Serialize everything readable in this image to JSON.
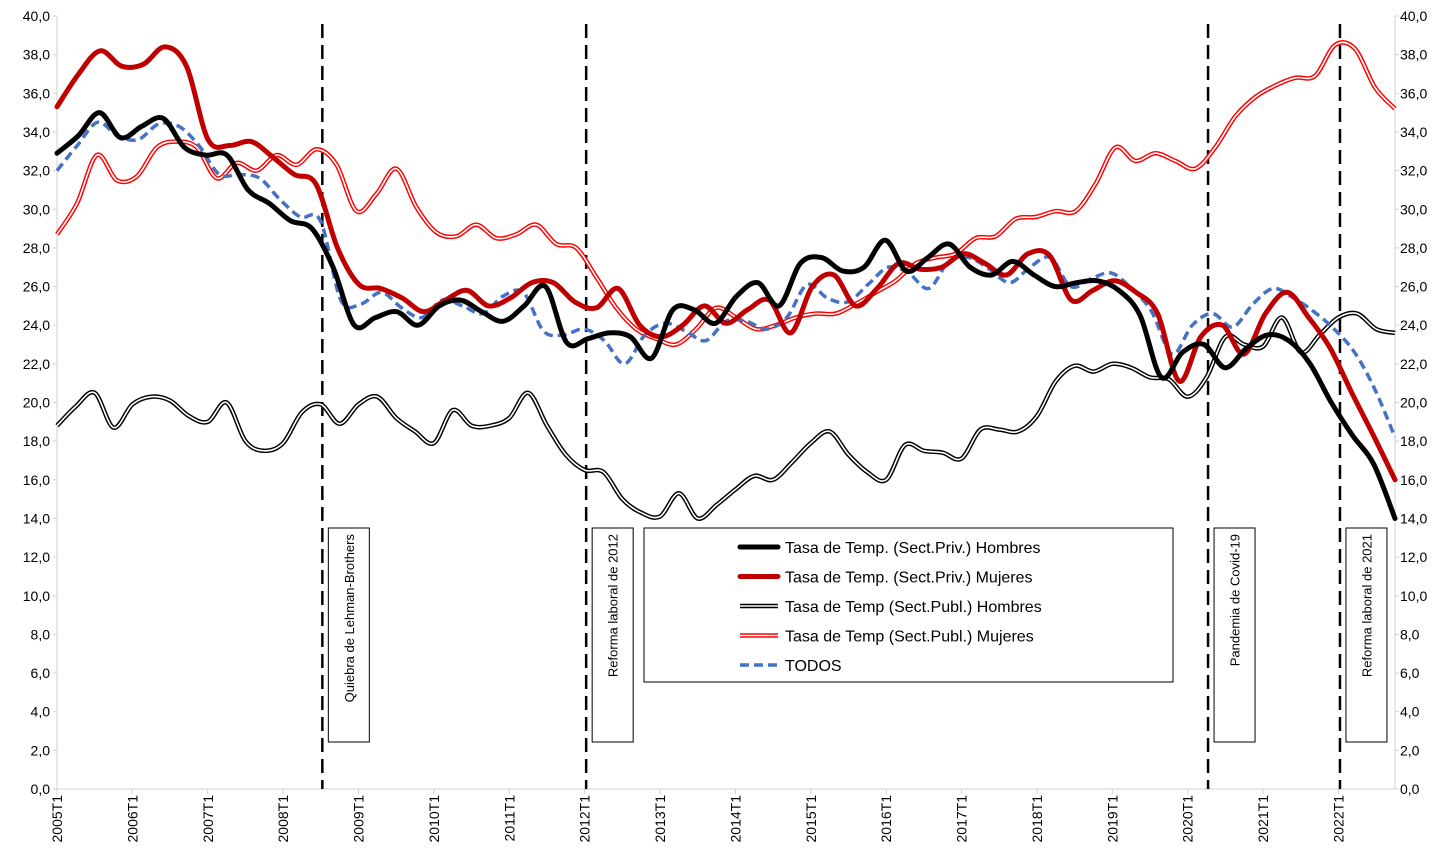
{
  "chart_data": {
    "type": "line",
    "title": "",
    "xlabel": "",
    "ylabel": "",
    "ylim": [
      0,
      40
    ],
    "y_ticks": [
      "0,0",
      "2,0",
      "4,0",
      "6,0",
      "8,0",
      "10,0",
      "12,0",
      "14,0",
      "16,0",
      "18,0",
      "20,0",
      "22,0",
      "24,0",
      "26,0",
      "28,0",
      "30,0",
      "32,0",
      "34,0",
      "36,0",
      "38,0",
      "40,0"
    ],
    "x_tick_labels": [
      "2005T1",
      "2006T1",
      "2007T1",
      "2008T1",
      "2009T1",
      "2010T1",
      "2011T1",
      "2012T1",
      "2013T1",
      "2014T1",
      "2015T1",
      "2016T1",
      "2017T1",
      "2018T1",
      "2019T1",
      "2020T1",
      "2021T1",
      "2022T1"
    ],
    "quarters_count": 72,
    "grid": false,
    "legend_position": "bottom-center",
    "series": [
      {
        "name": "Tasa de Temp. (Sect.Priv.) Hombres",
        "color": "#000000",
        "style": "thick",
        "values": [
          32.9,
          33.8,
          35.0,
          33.7,
          34.3,
          34.7,
          33.2,
          32.8,
          32.8,
          31.0,
          30.3,
          29.4,
          29.0,
          27.0,
          24.0,
          24.4,
          24.7,
          24.0,
          25.0,
          25.3,
          24.7,
          24.2,
          25.0,
          26.0,
          23.1,
          23.3,
          23.6,
          23.4,
          22.3,
          24.8,
          24.8,
          24.1,
          25.5,
          26.2,
          25.0,
          27.2,
          27.5,
          26.8,
          27.0,
          28.4,
          26.8,
          27.5,
          28.2,
          27.0,
          26.6,
          27.3,
          26.6,
          26.0,
          26.2,
          26.3,
          25.8,
          24.5,
          21.3,
          22.6,
          23.0,
          21.8,
          22.8,
          23.5,
          23.2,
          22.0,
          20.0,
          18.3,
          16.8,
          14.0
        ]
      },
      {
        "name": "Tasa de Temp. (Sect.Priv.) Mujeres",
        "color": "#c00000",
        "style": "thick",
        "values": [
          35.3,
          37.0,
          38.2,
          37.4,
          37.5,
          38.4,
          37.4,
          33.6,
          33.3,
          33.5,
          32.7,
          31.8,
          31.3,
          28.0,
          26.1,
          25.9,
          25.4,
          24.7,
          25.3,
          25.8,
          25.0,
          25.4,
          26.2,
          26.2,
          25.2,
          24.9,
          25.9,
          24.0,
          23.4,
          24.0,
          25.0,
          24.1,
          24.8,
          25.3,
          23.6,
          26.0,
          26.6,
          25.0,
          25.9,
          27.2,
          26.9,
          27.0,
          27.7,
          27.2,
          26.6,
          27.7,
          27.6,
          25.3,
          25.8,
          26.3,
          25.7,
          24.6,
          21.1,
          23.4,
          24.0,
          22.5,
          24.6,
          25.7,
          24.4,
          22.8,
          20.5,
          18.3,
          16.0
        ]
      },
      {
        "name": "Tasa de Temp (Sect.Publ.) Hombres",
        "color": "#000000",
        "style": "outline",
        "values": [
          18.8,
          19.8,
          20.5,
          18.7,
          19.9,
          20.3,
          20.1,
          19.3,
          19.0,
          20.0,
          18.0,
          17.5,
          17.9,
          19.5,
          19.9,
          18.9,
          19.9,
          20.3,
          19.2,
          18.5,
          17.9,
          19.6,
          18.8,
          18.8,
          19.2,
          20.5,
          18.8,
          17.3,
          16.5,
          16.4,
          15.0,
          14.3,
          14.1,
          15.3,
          14.0,
          14.7,
          15.5,
          16.2,
          16.0,
          16.9,
          17.9,
          18.5,
          17.3,
          16.4,
          16.0,
          17.8,
          17.5,
          17.4,
          17.1,
          18.6,
          18.6,
          18.5,
          19.3,
          21.1,
          21.9,
          21.6,
          22.0,
          21.8,
          21.3,
          21.2,
          20.3,
          21.3,
          23.4,
          23.0,
          22.9,
          24.4,
          22.6,
          23.5,
          24.4,
          24.6,
          23.8,
          23.6
        ]
      },
      {
        "name": "Tasa de Temp (Sect.Publ.) Mujeres",
        "color": "#ff0000",
        "style": "outline",
        "values": [
          28.7,
          30.3,
          32.8,
          31.5,
          31.7,
          33.2,
          33.5,
          33.2,
          31.6,
          32.4,
          32.0,
          32.8,
          32.3,
          33.1,
          32.3,
          29.9,
          30.8,
          32.1,
          30.1,
          28.8,
          28.6,
          29.2,
          28.5,
          28.7,
          29.2,
          28.2,
          28.0,
          26.5,
          24.9,
          23.8,
          23.3,
          23.0,
          23.8,
          24.9,
          24.4,
          23.8,
          24.0,
          24.4,
          24.6,
          24.6,
          25.1,
          25.7,
          26.3,
          27.2,
          27.5,
          27.7,
          28.5,
          28.6,
          29.5,
          29.6,
          29.9,
          29.9,
          31.3,
          33.2,
          32.5,
          32.9,
          32.5,
          32.1,
          33.2,
          34.8,
          35.8,
          36.4,
          36.8,
          36.9,
          38.5,
          38.3,
          36.3,
          35.2
        ]
      },
      {
        "name": "TODOS",
        "color": "#4472c4",
        "style": "dashed",
        "values": [
          32.0,
          33.3,
          34.5,
          33.8,
          33.6,
          34.4,
          34.3,
          33.3,
          31.8,
          31.8,
          31.6,
          30.5,
          29.6,
          29.4,
          25.3,
          25.1,
          25.7,
          24.9,
          24.4,
          25.3,
          25.0,
          24.6,
          25.5,
          25.7,
          23.7,
          23.5,
          23.8,
          23.2,
          22.0,
          23.5,
          24.1,
          23.7,
          23.2,
          24.2,
          24.2,
          23.8,
          24.4,
          26.1,
          25.4,
          25.2,
          26.1,
          27.0,
          26.7,
          25.9,
          27.3,
          27.5,
          26.9,
          26.2,
          27.0,
          27.5,
          26.0,
          26.4,
          26.7,
          25.9,
          24.7,
          22.5,
          24.0,
          24.6,
          23.9,
          25.1,
          25.9,
          25.4,
          24.7,
          23.8,
          22.6,
          20.7,
          18.2
        ]
      }
    ],
    "annotations": [
      {
        "label": "Quiebra de Lehman-Brothers",
        "quarter": 14
      },
      {
        "label": "Reforma laboral de 2012",
        "quarter": 28
      },
      {
        "label": "Pandemia de Covid-19",
        "quarter": 61
      },
      {
        "label": "Reforma laboral de 2021",
        "quarter": 68
      }
    ]
  }
}
